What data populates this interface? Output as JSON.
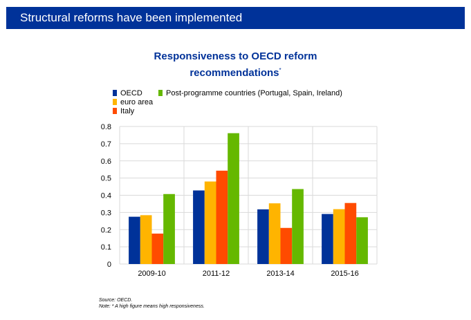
{
  "banner": {
    "title": "Structural reforms have been implemented"
  },
  "chart_data": {
    "type": "bar",
    "title": "Responsiveness to OECD reform recommendations",
    "title_marker": "*",
    "categories": [
      "2009-10",
      "2011-12",
      "2013-14",
      "2015-16"
    ],
    "series": [
      {
        "name": "OECD",
        "color": "#003299",
        "values": [
          0.275,
          0.428,
          0.318,
          0.291
        ]
      },
      {
        "name": "euro area",
        "color": "#FFB400",
        "values": [
          0.284,
          0.48,
          0.353,
          0.319
        ]
      },
      {
        "name": "Italy",
        "color": "#FF4B00",
        "values": [
          0.177,
          0.543,
          0.21,
          0.355
        ]
      },
      {
        "name": "Post-programme countries (Portugal, Spain, Ireland)",
        "color": "#65B800",
        "values": [
          0.407,
          0.761,
          0.436,
          0.272
        ]
      }
    ],
    "ylim": [
      0,
      0.8
    ],
    "yticks": [
      "0",
      "0.1",
      "0.2",
      "0.3",
      "0.4",
      "0.5",
      "0.6",
      "0.7",
      "0.8"
    ],
    "xlabel": "",
    "ylabel": "",
    "grid": true,
    "legend_position": "top-left"
  },
  "notes": {
    "source": "Source: OECD.",
    "note": "Note: * A high figure means  high responsiveness."
  }
}
